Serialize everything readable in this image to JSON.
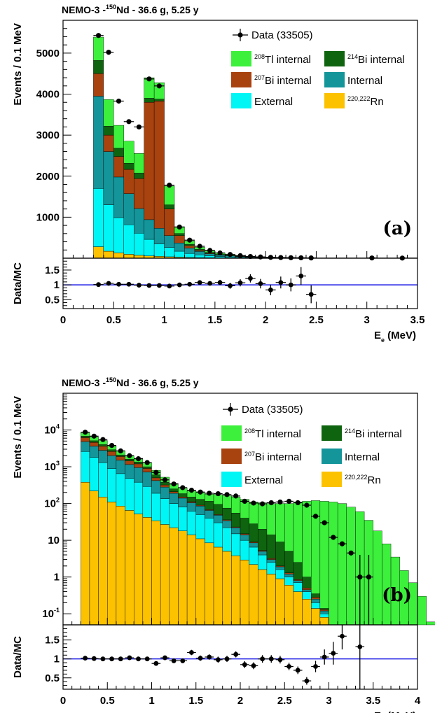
{
  "chart_data": [
    {
      "type": "bar",
      "panel_label": "(a)",
      "title": "NEMO-3 -¹⁵⁰Nd - 36.6 g, 5.25 y",
      "title_parts": {
        "prefix": "NEMO-3 -",
        "sup": "150",
        "suffix": "Nd - 36.6 g, 5.25 y"
      },
      "xlabel_main": "E",
      "xlabel_sub": "e",
      "xlabel_unit": " (MeV)",
      "ylabel": "Events / 0.1 MeV",
      "ratio_ylabel": "Data/MC",
      "xlim": [
        0,
        3.5
      ],
      "ylim": [
        0,
        5800
      ],
      "yscale": "linear",
      "x_ticks": [
        "0",
        "0.5",
        "1",
        "1.5",
        "2",
        "2.5",
        "3",
        "3.5"
      ],
      "y_ticks": [
        1000,
        2000,
        3000,
        4000,
        5000
      ],
      "ratio_ylim": [
        0.2,
        1.9
      ],
      "ratio_ticks": [
        "0.5",
        "1",
        "1.5"
      ],
      "legend": {
        "position": "top-right",
        "data_entry": "Data (33505)",
        "entries": [
          {
            "pre": "",
            "sup": "208",
            "text": "Tl internal",
            "color": "#3cf03c"
          },
          {
            "pre": "",
            "sup": "214",
            "text": "Bi internal",
            "color": "#0f640f"
          },
          {
            "pre": "",
            "sup": "207",
            "text": "Bi internal",
            "color": "#a8420f"
          },
          {
            "pre": "",
            "sup": "",
            "text": "Internal",
            "color": "#13959a"
          },
          {
            "pre": "",
            "sup": "",
            "text": "External",
            "color": "#00f5f5"
          },
          {
            "pre": "",
            "sup": "220,222",
            "text": "Rn",
            "color": "#fcc200"
          }
        ]
      },
      "bin_edges": [
        0.3,
        0.4,
        0.5,
        0.6,
        0.7,
        0.8,
        0.9,
        1.0,
        1.1,
        1.2,
        1.3,
        1.4,
        1.5,
        1.6,
        1.7,
        1.8,
        1.9,
        2.0,
        2.1,
        2.2,
        2.3,
        2.4,
        2.5,
        3.5
      ],
      "series": [
        {
          "name": "²²⁰,²²²Rn",
          "color": "#fcc200",
          "values": [
            280,
            170,
            130,
            95,
            70,
            55,
            45,
            35,
            25,
            18,
            14,
            10,
            8,
            6,
            5,
            4,
            3,
            2,
            2,
            1,
            1,
            1,
            1
          ]
        },
        {
          "name": "External",
          "color": "#00f5f5",
          "values": [
            1420,
            1130,
            860,
            720,
            540,
            405,
            305,
            225,
            145,
            97,
            66,
            45,
            32,
            24,
            17,
            12,
            9,
            7,
            5,
            4,
            3,
            2,
            2
          ]
        },
        {
          "name": "Internal",
          "color": "#13959a",
          "values": [
            2250,
            1300,
            990,
            760,
            600,
            480,
            380,
            290,
            200,
            130,
            85,
            55,
            35,
            25,
            18,
            12,
            8,
            6,
            4,
            3,
            2,
            2,
            1
          ]
        },
        {
          "name": "²⁰⁷Bi internal",
          "color": "#a8420f",
          "values": [
            550,
            400,
            500,
            590,
            730,
            2860,
            3100,
            650,
            180,
            60,
            25,
            12,
            6,
            4,
            2,
            2,
            1,
            1,
            1,
            1,
            1,
            0,
            0
          ]
        },
        {
          "name": "²¹⁴Bi internal",
          "color": "#0f640f",
          "values": [
            320,
            220,
            200,
            150,
            135,
            100,
            50,
            100,
            52,
            35,
            25,
            18,
            12,
            8,
            6,
            5,
            4,
            3,
            2,
            2,
            1,
            1,
            1
          ]
        },
        {
          "name": "²⁰⁸Tl internal",
          "color": "#3cf03c",
          "values": [
            570,
            650,
            560,
            540,
            480,
            500,
            400,
            460,
            165,
            80,
            55,
            40,
            30,
            22,
            15,
            12,
            10,
            8,
            6,
            5,
            4,
            3,
            2
          ]
        }
      ],
      "data_points": {
        "x": [
          0.35,
          0.45,
          0.55,
          0.65,
          0.75,
          0.85,
          0.95,
          1.05,
          1.15,
          1.25,
          1.35,
          1.45,
          1.55,
          1.65,
          1.75,
          1.85,
          1.95,
          2.05,
          2.15,
          2.25,
          2.35,
          2.45,
          3.05,
          3.35
        ],
        "y": [
          5430,
          5020,
          3830,
          3330,
          3200,
          4370,
          4200,
          1780,
          760,
          440,
          290,
          190,
          128,
          90,
          62,
          42,
          30,
          20,
          16,
          12,
          10,
          6,
          5,
          3
        ]
      },
      "ratio_points": {
        "x": [
          0.35,
          0.45,
          0.55,
          0.65,
          0.75,
          0.85,
          0.95,
          1.05,
          1.15,
          1.25,
          1.35,
          1.45,
          1.55,
          1.65,
          1.75,
          1.85,
          1.95,
          2.05,
          2.15,
          2.25,
          2.35,
          2.45
        ],
        "y": [
          1.01,
          1.05,
          1.02,
          1.02,
          0.99,
          0.98,
          0.98,
          0.96,
          1.0,
          1.02,
          1.08,
          1.05,
          1.08,
          0.97,
          1.07,
          1.22,
          1.04,
          0.83,
          1.08,
          1.0,
          1.3,
          0.68
        ],
        "err": [
          0.02,
          0.02,
          0.02,
          0.02,
          0.02,
          0.02,
          0.02,
          0.03,
          0.04,
          0.05,
          0.06,
          0.07,
          0.09,
          0.1,
          0.12,
          0.14,
          0.16,
          0.18,
          0.2,
          0.22,
          0.3,
          0.3
        ]
      }
    },
    {
      "type": "bar",
      "panel_label": "(b)",
      "title": "NEMO-3 -¹⁵⁰Nd - 36.6 g, 5.25 y",
      "title_parts": {
        "prefix": "NEMO-3 -",
        "sup": "150",
        "suffix": "Nd - 36.6 g, 5.25 y"
      },
      "xlabel_main": "E",
      "xlabel_sub": "γ",
      "xlabel_unit": " (MeV)",
      "ylabel": "Events / 0.1 MeV",
      "ratio_ylabel": "Data/MC",
      "xlim": [
        0,
        4
      ],
      "ylim": [
        0.05,
        100000
      ],
      "yscale": "log",
      "x_ticks": [
        "0",
        "0.5",
        "1",
        "1.5",
        "2",
        "2.5",
        "3",
        "3.5",
        "4"
      ],
      "y_ticks": [
        {
          "value": 0.1,
          "base": "10",
          "exp": "-1"
        },
        {
          "value": 1,
          "base": "1",
          "exp": ""
        },
        {
          "value": 10,
          "base": "10",
          "exp": ""
        },
        {
          "value": 100,
          "base": "10",
          "exp": "2"
        },
        {
          "value": 1000,
          "base": "10",
          "exp": "3"
        },
        {
          "value": 10000,
          "base": "10",
          "exp": "4"
        }
      ],
      "ratio_ylim": [
        0.2,
        1.9
      ],
      "ratio_ticks": [
        "0.5",
        "1",
        "1.5"
      ],
      "legend": {
        "position": "top-right",
        "data_entry": "Data (33505)",
        "entries": [
          {
            "pre": "",
            "sup": "208",
            "text": "Tl internal",
            "color": "#3cf03c"
          },
          {
            "pre": "",
            "sup": "214",
            "text": "Bi internal",
            "color": "#0f640f"
          },
          {
            "pre": "",
            "sup": "207",
            "text": "Bi internal",
            "color": "#a8420f"
          },
          {
            "pre": "",
            "sup": "",
            "text": "Internal",
            "color": "#13959a"
          },
          {
            "pre": "",
            "sup": "",
            "text": "External",
            "color": "#00f5f5"
          },
          {
            "pre": "",
            "sup": "220,222",
            "text": "Rn",
            "color": "#fcc200"
          }
        ]
      },
      "totals": [
        8500,
        6500,
        5200,
        3700,
        2700,
        2000,
        1700,
        1300,
        800,
        520,
        350,
        270,
        220,
        200,
        180,
        175,
        165,
        150,
        130,
        110,
        105,
        100,
        100,
        100,
        110,
        115,
        120,
        115,
        110,
        100,
        80,
        60,
        35,
        18,
        8,
        3.5,
        1.5,
        0.7,
        0.3,
        0.06,
        0.07
      ],
      "stack_bounds": {
        "Rn": [
          380,
          220,
          150,
          110,
          85,
          65,
          52,
          42,
          34,
          27,
          22,
          18,
          14,
          11,
          8.5,
          6.5,
          5,
          3.8,
          2.9,
          2.2,
          1.6,
          1.2,
          0.9,
          0.6,
          0.4,
          0.25,
          0.14,
          0.08
        ],
        "External": [
          2600,
          1800,
          1300,
          900,
          650,
          480,
          380,
          290,
          190,
          135,
          100,
          80,
          62,
          50,
          40,
          30,
          22,
          15,
          10,
          6.5,
          4,
          2.5,
          1.6,
          1.0,
          0.7,
          0.4,
          0.2,
          0.1
        ],
        "Internal": [
          4800,
          3600,
          2800,
          2000,
          1500,
          1150,
          950,
          720,
          420,
          280,
          190,
          140,
          105,
          85,
          65,
          48,
          34,
          22,
          14,
          8.5,
          5,
          3,
          1.9,
          1.2,
          0.8,
          0.45,
          0.25,
          0.12
        ],
        "Bi207": [
          6200,
          4600,
          3600,
          2600,
          1900,
          1450,
          1200,
          900,
          500,
          320,
          210,
          150,
          112,
          90,
          68,
          50,
          36,
          23,
          15,
          9,
          5.3,
          3.2,
          2.0,
          1.3,
          0.85,
          0.5,
          0.28,
          0.13
        ],
        "Bi214": [
          6800,
          5100,
          4000,
          2900,
          2100,
          1600,
          1350,
          1000,
          600,
          380,
          250,
          185,
          150,
          130,
          115,
          95,
          75,
          55,
          40,
          28,
          20,
          14,
          9,
          5,
          2.5,
          1.0,
          0.35,
          0.14
        ]
      },
      "series": [
        {
          "name": "²²⁰,²²²Rn",
          "color": "#fcc200"
        },
        {
          "name": "External",
          "color": "#00f5f5"
        },
        {
          "name": "Internal",
          "color": "#13959a"
        },
        {
          "name": "²⁰⁷Bi internal",
          "color": "#a8420f"
        },
        {
          "name": "²¹⁴Bi internal",
          "color": "#0f640f"
        },
        {
          "name": "²⁰⁸Tl internal",
          "color": "#3cf03c"
        }
      ],
      "data_points": {
        "x": [
          0.25,
          0.35,
          0.45,
          0.55,
          0.65,
          0.75,
          0.85,
          0.95,
          1.05,
          1.15,
          1.25,
          1.35,
          1.45,
          1.55,
          1.65,
          1.75,
          1.85,
          1.95,
          2.05,
          2.15,
          2.25,
          2.35,
          2.45,
          2.55,
          2.65,
          2.75,
          2.85,
          2.95,
          3.05,
          3.15,
          3.25,
          3.35,
          3.45
        ],
        "y": [
          8700,
          6800,
          5500,
          3800,
          2700,
          2000,
          1650,
          1300,
          700,
          440,
          340,
          270,
          230,
          205,
          190,
          185,
          175,
          160,
          115,
          103,
          98,
          105,
          110,
          115,
          105,
          90,
          45,
          30,
          12,
          8,
          4.5,
          1,
          1
        ]
      },
      "ratio_points": {
        "x": [
          0.25,
          0.35,
          0.45,
          0.55,
          0.65,
          0.75,
          0.85,
          0.95,
          1.05,
          1.15,
          1.25,
          1.35,
          1.45,
          1.55,
          1.65,
          1.75,
          1.85,
          1.95,
          2.05,
          2.15,
          2.25,
          2.35,
          2.45,
          2.55,
          2.65,
          2.75,
          2.85,
          2.95,
          3.05,
          3.15,
          3.35
        ],
        "y": [
          1.02,
          1.01,
          1.0,
          1.0,
          1.0,
          1.03,
          1.0,
          1.0,
          0.88,
          1.03,
          0.95,
          0.95,
          1.17,
          1.02,
          1.05,
          0.98,
          1.0,
          1.12,
          0.85,
          0.82,
          1.0,
          1.0,
          0.98,
          0.8,
          0.7,
          0.42,
          0.8,
          1.05,
          1.15,
          1.6,
          1.32
        ],
        "err": [
          0.02,
          0.02,
          0.02,
          0.02,
          0.02,
          0.03,
          0.03,
          0.03,
          0.04,
          0.05,
          0.05,
          0.06,
          0.07,
          0.07,
          0.07,
          0.08,
          0.08,
          0.08,
          0.09,
          0.09,
          0.1,
          0.1,
          0.1,
          0.1,
          0.1,
          0.1,
          0.15,
          0.2,
          0.3,
          0.35,
          1.2
        ]
      }
    }
  ]
}
